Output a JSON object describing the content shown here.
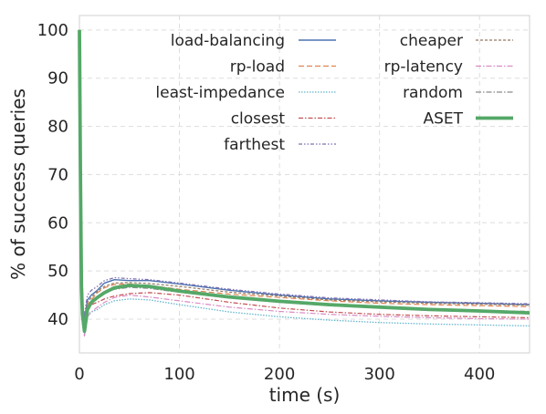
{
  "chart_data": {
    "type": "line",
    "xlabel": "time (s)",
    "ylabel": "% of success queries",
    "xlim": [
      0,
      450
    ],
    "ylim": [
      33,
      103
    ],
    "xticks": [
      0,
      100,
      200,
      300,
      400
    ],
    "yticks": [
      40,
      50,
      60,
      70,
      80,
      90,
      100
    ],
    "grid": true,
    "legend_placement": "top, two columns",
    "series": [
      {
        "name": "load-balancing",
        "color": "#4c72b0",
        "dash": "solid",
        "width": 1.4,
        "x": [
          0,
          1,
          2,
          3,
          5,
          8,
          12,
          18,
          25,
          35,
          50,
          70,
          100,
          150,
          200,
          250,
          300,
          350,
          400,
          450
        ],
        "y": [
          100,
          70,
          48,
          42,
          40,
          44,
          45,
          46,
          47.5,
          48.2,
          48,
          48,
          47.3,
          46,
          45,
          44.2,
          43.8,
          43.5,
          43.3,
          43
        ]
      },
      {
        "name": "rp-load",
        "color": "#dd8452",
        "dash": "6,3",
        "width": 1.2,
        "x": [
          0,
          1,
          2,
          3,
          5,
          8,
          12,
          18,
          25,
          35,
          50,
          70,
          100,
          150,
          200,
          250,
          300,
          350,
          400,
          450
        ],
        "y": [
          100,
          70,
          47,
          41,
          39,
          43,
          44,
          45.5,
          46.5,
          47.2,
          47.3,
          47,
          46.2,
          45.2,
          44.5,
          43.8,
          43.3,
          43,
          42.8,
          42.6
        ]
      },
      {
        "name": "least-impedance",
        "color": "#64b5cd",
        "dash": "1.5,1.5",
        "width": 1.3,
        "x": [
          0,
          1,
          2,
          3,
          5,
          8,
          12,
          18,
          25,
          35,
          50,
          70,
          100,
          150,
          200,
          250,
          300,
          350,
          400,
          450
        ],
        "y": [
          100,
          65,
          45,
          39,
          37,
          41,
          41.5,
          42,
          43,
          43.8,
          44.2,
          44,
          43,
          41.5,
          40.5,
          39.8,
          39.3,
          39,
          38.8,
          38.6
        ]
      },
      {
        "name": "closest",
        "color": "#c44e52",
        "dash": "5,2,1.5,2",
        "width": 1.2,
        "x": [
          0,
          1,
          2,
          3,
          5,
          8,
          12,
          18,
          25,
          35,
          50,
          70,
          100,
          150,
          200,
          250,
          300,
          350,
          400,
          450
        ],
        "y": [
          100,
          68,
          46,
          40,
          38,
          42,
          43,
          43.5,
          44.2,
          44.8,
          45.3,
          45.5,
          45,
          43.5,
          42.3,
          41.5,
          41,
          40.7,
          40.5,
          40.3
        ]
      },
      {
        "name": "farthest",
        "color": "#8172b3",
        "dash": "4,2,1.5,2,1.5,2",
        "width": 1.3,
        "x": [
          0,
          1,
          2,
          3,
          5,
          8,
          12,
          18,
          25,
          35,
          50,
          70,
          100,
          150,
          200,
          250,
          300,
          350,
          400,
          450
        ],
        "y": [
          100,
          72,
          49,
          42,
          41,
          45,
          46,
          46.8,
          48,
          48.6,
          48.4,
          48.2,
          47.5,
          46.2,
          45.2,
          44.4,
          44,
          43.6,
          43.4,
          43.2
        ]
      },
      {
        "name": "cheaper",
        "color": "#937860",
        "dash": "3,2",
        "width": 1.2,
        "x": [
          0,
          1,
          2,
          3,
          5,
          8,
          12,
          18,
          25,
          35,
          50,
          70,
          100,
          150,
          200,
          250,
          300,
          350,
          400,
          450
        ],
        "y": [
          100,
          69,
          47,
          41,
          39.5,
          43.5,
          44.5,
          45.8,
          46.8,
          47.5,
          47.6,
          47.4,
          46.8,
          45.6,
          44.8,
          44,
          43.6,
          43.3,
          43.1,
          42.9
        ]
      },
      {
        "name": "rp-latency",
        "color": "#da8bc3",
        "dash": "6,2,1.5,2",
        "width": 1.2,
        "x": [
          0,
          1,
          2,
          3,
          5,
          8,
          12,
          18,
          25,
          35,
          50,
          70,
          100,
          150,
          200,
          250,
          300,
          350,
          400,
          450
        ],
        "y": [
          100,
          66,
          45,
          39,
          36.5,
          40.5,
          41.5,
          42.5,
          43.5,
          44.5,
          45,
          44.6,
          43.8,
          42.5,
          41.6,
          41,
          40.6,
          40.3,
          40.1,
          40
        ]
      },
      {
        "name": "random",
        "color": "#8c8c8c",
        "dash": "6,2,1.5,2",
        "width": 1.3,
        "x": [
          0,
          1,
          2,
          3,
          5,
          8,
          12,
          18,
          25,
          35,
          50,
          70,
          100,
          150,
          200,
          250,
          300,
          350,
          400,
          450
        ],
        "y": [
          100,
          68,
          46,
          40,
          38.5,
          42.5,
          43.5,
          44.5,
          45.5,
          46.2,
          46.6,
          46.4,
          45.6,
          44.4,
          43.5,
          42.8,
          42.3,
          42,
          41.8,
          41.6
        ]
      },
      {
        "name": "ASET",
        "color": "#55a868",
        "dash": "solid",
        "width": 3.8,
        "x": [
          0,
          1,
          2,
          3,
          5,
          8,
          12,
          18,
          25,
          35,
          50,
          70,
          100,
          150,
          200,
          250,
          300,
          350,
          400,
          450
        ],
        "y": [
          100,
          70,
          47,
          41,
          37.5,
          42,
          43.5,
          44.5,
          45.5,
          46.5,
          47,
          46.8,
          45.8,
          44.6,
          43.7,
          43,
          42.5,
          42,
          41.7,
          41.3
        ]
      }
    ]
  }
}
